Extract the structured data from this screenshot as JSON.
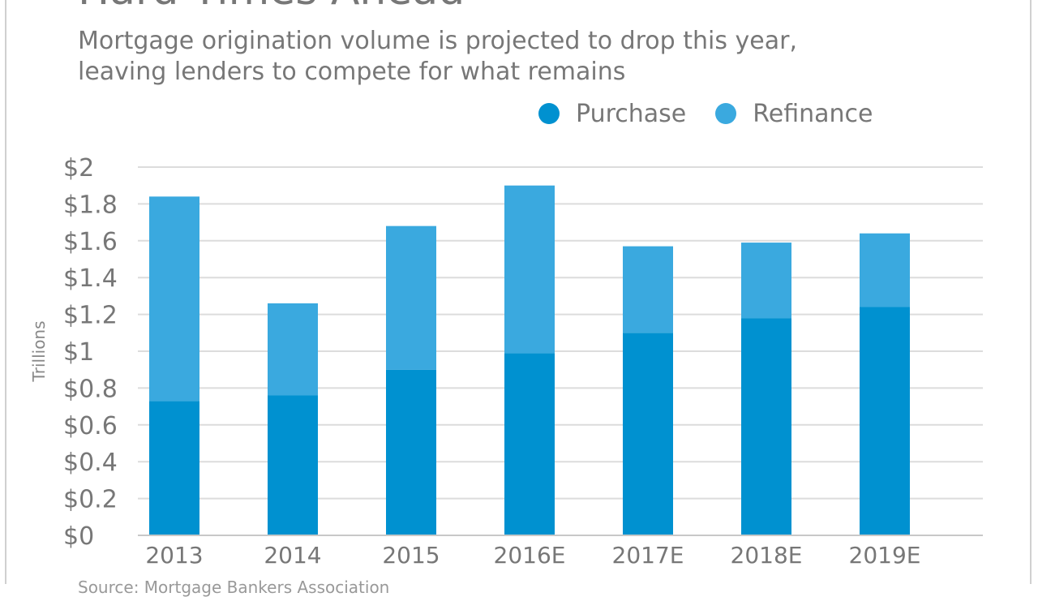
{
  "chart_data": {
    "type": "bar",
    "stacked": true,
    "title": "Hard Times Ahead",
    "subtitle_lines": [
      "Mortgage origination volume is projected to drop this year,",
      "leaving lenders to compete for what remains"
    ],
    "ylabel": "Trillions",
    "xlabel": "",
    "ylim": [
      0,
      2
    ],
    "yticks": [
      0,
      0.2,
      0.4,
      0.6,
      0.8,
      1,
      1.2,
      1.4,
      1.6,
      1.8,
      2
    ],
    "ytick_labels": [
      "$0",
      "$0.2",
      "$0.4",
      "$0.6",
      "$0.8",
      "$1",
      "$1.2",
      "$1.4",
      "$1.6",
      "$1.8",
      "$2"
    ],
    "categories": [
      "2013",
      "2014",
      "2015",
      "2016E",
      "2017E",
      "2018E",
      "2019E"
    ],
    "series": [
      {
        "name": "Purchase",
        "color": "#0091d0",
        "values": [
          0.73,
          0.76,
          0.9,
          0.99,
          1.1,
          1.18,
          1.24
        ]
      },
      {
        "name": "Refinance",
        "color": "#3aa9df",
        "values": [
          1.11,
          0.5,
          0.78,
          0.91,
          0.47,
          0.41,
          0.4
        ]
      }
    ],
    "legend_position": "top-right",
    "grid": true,
    "source_text": "Source: Mortgage Bankers Association"
  }
}
